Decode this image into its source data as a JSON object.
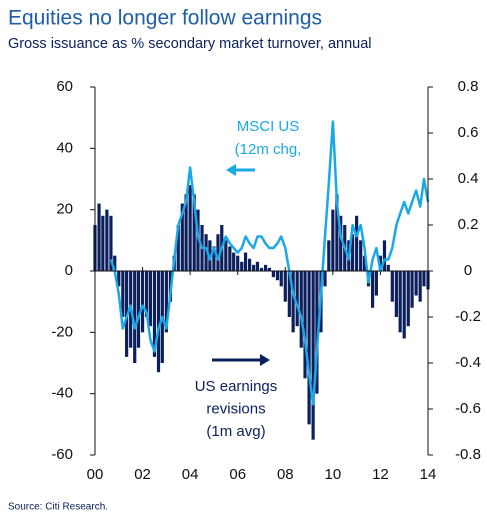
{
  "chart_data": {
    "type": "bar-line",
    "title": "Equities no longer follow earnings",
    "subtitle": "Gross issuance as % secondary market turnover, annual",
    "source": "Source: Citi Research.",
    "x": [
      2000.0,
      2000.17,
      2000.33,
      2000.5,
      2000.67,
      2000.83,
      2001.0,
      2001.17,
      2001.33,
      2001.5,
      2001.67,
      2001.83,
      2002.0,
      2002.17,
      2002.33,
      2002.5,
      2002.67,
      2002.83,
      2003.0,
      2003.17,
      2003.33,
      2003.5,
      2003.67,
      2003.83,
      2004.0,
      2004.17,
      2004.33,
      2004.5,
      2004.67,
      2004.83,
      2005.0,
      2005.17,
      2005.33,
      2005.5,
      2005.67,
      2005.83,
      2006.0,
      2006.17,
      2006.33,
      2006.5,
      2006.67,
      2006.83,
      2007.0,
      2007.17,
      2007.33,
      2007.5,
      2007.67,
      2007.83,
      2008.0,
      2008.17,
      2008.33,
      2008.5,
      2008.67,
      2008.83,
      2009.0,
      2009.17,
      2009.33,
      2009.5,
      2009.67,
      2009.83,
      2010.0,
      2010.17,
      2010.33,
      2010.5,
      2010.67,
      2010.83,
      2011.0,
      2011.17,
      2011.33,
      2011.5,
      2011.67,
      2011.83,
      2012.0,
      2012.17,
      2012.33,
      2012.5,
      2012.67,
      2012.83,
      2013.0,
      2013.17,
      2013.33,
      2013.5,
      2013.67,
      2013.83,
      2014.0
    ],
    "series": [
      {
        "name": "US earnings revisions (1m avg)",
        "kind": "bar",
        "color": "#0b1f5c",
        "values": [
          15,
          22,
          18,
          20,
          18,
          5,
          -5,
          -15,
          -28,
          -25,
          -30,
          -25,
          -20,
          -15,
          -18,
          -28,
          -33,
          -30,
          -20,
          -10,
          5,
          15,
          22,
          25,
          28,
          25,
          20,
          15,
          12,
          10,
          8,
          12,
          15,
          10,
          8,
          6,
          5,
          3,
          6,
          4,
          2,
          3,
          1,
          2,
          1,
          -2,
          -3,
          -5,
          -10,
          -15,
          -20,
          -18,
          -25,
          -35,
          -50,
          -55,
          -40,
          -20,
          -5,
          10,
          20,
          25,
          18,
          15,
          10,
          12,
          18,
          10,
          5,
          -5,
          -12,
          -8,
          5,
          10,
          2,
          -10,
          -15,
          -20,
          -22,
          -18,
          -12,
          -8,
          -10,
          -5,
          -6
        ]
      },
      {
        "name": "MSCI US (12m chg,",
        "kind": "line",
        "axis": "y2",
        "color": "#1aa9e6",
        "values": [
          null,
          null,
          null,
          null,
          0.05,
          0.0,
          -0.1,
          -0.25,
          -0.2,
          -0.15,
          -0.25,
          -0.2,
          -0.15,
          -0.18,
          -0.3,
          -0.35,
          -0.25,
          -0.2,
          -0.25,
          -0.1,
          0.05,
          0.2,
          0.25,
          0.3,
          0.45,
          0.3,
          0.15,
          0.1,
          0.1,
          0.05,
          0.1,
          0.05,
          0.1,
          0.15,
          0.12,
          0.1,
          0.08,
          0.1,
          0.15,
          0.12,
          0.1,
          0.15,
          0.15,
          0.12,
          0.1,
          0.1,
          0.12,
          0.15,
          0.1,
          0.0,
          -0.1,
          -0.15,
          -0.2,
          -0.3,
          -0.45,
          -0.58,
          -0.35,
          -0.1,
          0.15,
          0.38,
          0.65,
          0.3,
          0.15,
          0.1,
          0.05,
          0.2,
          0.15,
          0.2,
          0.1,
          -0.05,
          0.05,
          0.1,
          0.0,
          0.05,
          0.05,
          0.1,
          0.2,
          0.25,
          0.3,
          0.25,
          0.3,
          0.35,
          0.28,
          0.4,
          0.3
        ]
      }
    ],
    "annotations": [
      {
        "lines": [
          "MSCI US",
          "(12m chg,"
        ],
        "color": "#1aa9e6"
      },
      {
        "lines": [
          "US earnings",
          "revisions",
          "(1m avg)"
        ],
        "color": "#0b1f5c"
      }
    ],
    "xlim": [
      2000,
      2014
    ],
    "xticks": [
      {
        "value": 2000,
        "label": "00"
      },
      {
        "value": 2002,
        "label": "02"
      },
      {
        "value": 2004,
        "label": "04"
      },
      {
        "value": 2006,
        "label": "06"
      },
      {
        "value": 2008,
        "label": "08"
      },
      {
        "value": 2010,
        "label": "10"
      },
      {
        "value": 2012,
        "label": "12"
      },
      {
        "value": 2014,
        "label": "14"
      }
    ],
    "ylim": [
      -60,
      60
    ],
    "yticks": [
      60,
      40,
      20,
      0,
      -20,
      -40,
      -60
    ],
    "y2lim": [
      -0.8,
      0.8
    ],
    "y2ticks": [
      0.8,
      0.6,
      0.4,
      0.2,
      0,
      -0.2,
      -0.4,
      -0.6,
      -0.8
    ]
  }
}
